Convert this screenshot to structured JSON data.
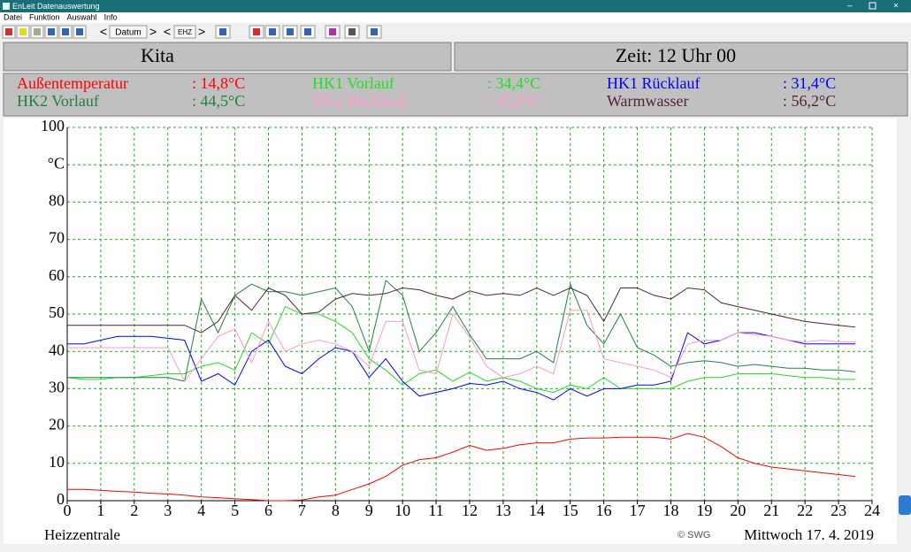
{
  "window": {
    "title": "EnLeit Datenauswertung",
    "menu": [
      "Datei",
      "Funktion",
      "Auswahl",
      "Info"
    ],
    "toolbar": [
      "Datum",
      "EHZ"
    ]
  },
  "header": {
    "location": "Kita",
    "time": "Zeit: 12 Uhr 00"
  },
  "footer": {
    "site": "Heizzentrale",
    "copyright": "© SWG",
    "date": "Mittwoch 17. 4. 2019"
  },
  "chart_data": {
    "type": "line",
    "x": [
      0,
      0.5,
      1,
      1.5,
      2,
      2.5,
      3,
      3.5,
      4,
      4.5,
      5,
      5.5,
      6,
      6.5,
      7,
      7.5,
      8,
      8.5,
      9,
      9.5,
      10,
      10.5,
      11,
      11.5,
      12,
      12.5,
      13,
      13.5,
      14,
      14.5,
      15,
      15.5,
      16,
      16.5,
      17,
      17.5,
      18,
      18.5,
      19,
      19.5,
      20,
      20.5,
      21,
      21.5,
      22,
      22.5,
      23,
      23.5
    ],
    "xlim": [
      0,
      24
    ],
    "xticks": [
      0,
      1,
      2,
      3,
      4,
      5,
      6,
      7,
      8,
      9,
      10,
      11,
      12,
      13,
      14,
      15,
      16,
      17,
      18,
      19,
      20,
      21,
      22,
      23,
      24
    ],
    "ylim": [
      0,
      100
    ],
    "yticks": [
      0,
      10,
      20,
      30,
      40,
      50,
      60,
      70,
      80,
      {
        "value": 90,
        "label": "°C"
      },
      100
    ],
    "grid": true,
    "grid_color": "#22aa22",
    "series": [
      {
        "name": "Außentemperatur",
        "reading": ": 14,8°C",
        "color": "#ff0000",
        "values": [
          3,
          3,
          2.8,
          2.5,
          2.3,
          2,
          1.8,
          1.5,
          1,
          0.8,
          0.5,
          0.3,
          0,
          0,
          0.2,
          1,
          1.5,
          3,
          4.5,
          6.5,
          9.5,
          11,
          11.5,
          13,
          14.8,
          13.5,
          14,
          15,
          15.5,
          15.5,
          16.5,
          16.8,
          16.8,
          17,
          17,
          17,
          16.5,
          18,
          17,
          14.5,
          11.5,
          10,
          9,
          8.5,
          8,
          7.5,
          7,
          6.5
        ]
      },
      {
        "name": "HK1 Vorlauf",
        "reading": ": 34,4°C",
        "color": "#22dd22",
        "values": [
          33,
          32.5,
          32.5,
          33,
          33,
          33.5,
          34,
          34,
          36,
          37,
          35,
          45,
          42,
          52,
          50,
          50,
          48,
          45,
          38,
          35,
          31,
          34,
          35,
          32,
          34.4,
          32,
          33,
          32,
          30,
          29,
          31,
          30,
          33,
          30,
          30,
          30,
          30,
          32,
          33,
          33,
          34,
          34,
          34,
          33.5,
          33,
          33,
          32.5,
          32.5
        ]
      },
      {
        "name": "HK1 Rücklauf",
        "reading": ": 31,4°C",
        "color": "#0000ff",
        "values": [
          42,
          42,
          43,
          44,
          44,
          44,
          43.5,
          43,
          32,
          34,
          31,
          40,
          43,
          36,
          34,
          38,
          41,
          40,
          33,
          38,
          32,
          28,
          29,
          30,
          31.4,
          31,
          32,
          30,
          29,
          27,
          30,
          28,
          30,
          30,
          31,
          31,
          32,
          45,
          42,
          43,
          45,
          45,
          44,
          43,
          42,
          42,
          42,
          42
        ]
      },
      {
        "name": "HK2 Vorlauf",
        "reading": ": 44,5°C",
        "color": "#208040",
        "values": [
          33,
          33,
          33,
          33,
          33,
          33,
          33,
          32,
          54,
          45,
          55,
          58,
          56,
          56,
          55,
          56,
          57,
          52,
          40,
          59,
          55,
          40,
          45,
          52,
          44.5,
          38,
          38,
          38,
          40,
          37,
          58,
          47,
          42,
          50,
          41,
          39,
          36,
          37,
          37.5,
          37,
          36,
          36.5,
          36,
          35.5,
          35.5,
          35,
          35,
          34.5
        ]
      },
      {
        "name": "HK2 Rücklauf",
        "reading": ": 43,8°C",
        "color": "#ff99cc",
        "values": [
          41,
          41,
          41,
          41,
          41,
          41,
          41,
          32,
          38,
          44,
          46,
          37,
          48,
          40,
          42,
          43,
          42,
          40,
          36,
          48,
          48,
          35,
          34,
          50,
          43.8,
          36,
          33,
          34,
          36,
          34,
          51,
          51,
          38,
          37,
          36,
          35,
          33,
          42,
          43,
          43,
          45,
          44.5,
          44,
          43,
          42.5,
          43,
          42.5,
          42.5
        ]
      },
      {
        "name": "Warmwasser",
        "reading": ": 56,2°C",
        "color": "#552233",
        "values": [
          47,
          47,
          47,
          47,
          47,
          47,
          47,
          47,
          45,
          48,
          55,
          51,
          57,
          55,
          50,
          50.5,
          54,
          55.5,
          55,
          55.5,
          57,
          56.5,
          55,
          54,
          56.2,
          55,
          55.5,
          55,
          57,
          55,
          57,
          55,
          48,
          57,
          57,
          55,
          54,
          57,
          56.5,
          53,
          52,
          51,
          50,
          49,
          48,
          47.5,
          47,
          46.5
        ]
      }
    ]
  }
}
